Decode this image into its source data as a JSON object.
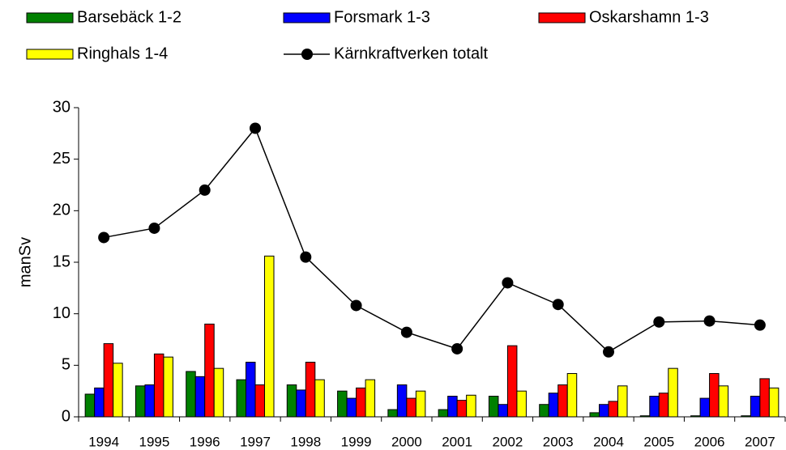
{
  "chart_data": {
    "type": "bar",
    "y_label": "manSv",
    "categories": [
      "1994",
      "1995",
      "1996",
      "1997",
      "1998",
      "1999",
      "2000",
      "2001",
      "2002",
      "2003",
      "2004",
      "2005",
      "2006",
      "2007"
    ],
    "series": [
      {
        "name": "Barsebäck 1-2",
        "color": "#008000",
        "values": [
          2.2,
          3.0,
          4.4,
          3.6,
          3.1,
          2.5,
          0.7,
          0.7,
          2.0,
          1.2,
          0.4,
          0.1,
          0.1,
          0.1
        ]
      },
      {
        "name": "Forsmark 1-3",
        "color": "#0000ff",
        "values": [
          2.8,
          3.1,
          3.9,
          5.3,
          2.6,
          1.8,
          3.1,
          2.0,
          1.2,
          2.3,
          1.2,
          2.0,
          1.8,
          2.0
        ]
      },
      {
        "name": "Oskarshamn 1-3",
        "color": "#ff0000",
        "values": [
          7.1,
          6.1,
          9.0,
          3.1,
          5.3,
          2.8,
          1.8,
          1.6,
          6.9,
          3.1,
          1.5,
          2.3,
          4.2,
          3.7
        ]
      },
      {
        "name": "Ringhals 1-4",
        "color": "#ffff00",
        "values": [
          5.2,
          5.8,
          4.7,
          15.6,
          3.6,
          3.6,
          2.5,
          2.1,
          2.5,
          4.2,
          3.0,
          4.7,
          3.0,
          2.8
        ]
      },
      {
        "name": "Kärnkraftverken totalt",
        "type": "line",
        "color": "#000000",
        "values": [
          17.4,
          18.3,
          22.0,
          28.0,
          15.5,
          10.8,
          8.2,
          6.6,
          13.0,
          10.9,
          6.3,
          9.2,
          9.3,
          8.9
        ]
      }
    ],
    "ylim": [
      0,
      30
    ],
    "yticks": [
      0,
      5,
      10,
      15,
      20,
      25,
      30
    ],
    "grid": false
  }
}
